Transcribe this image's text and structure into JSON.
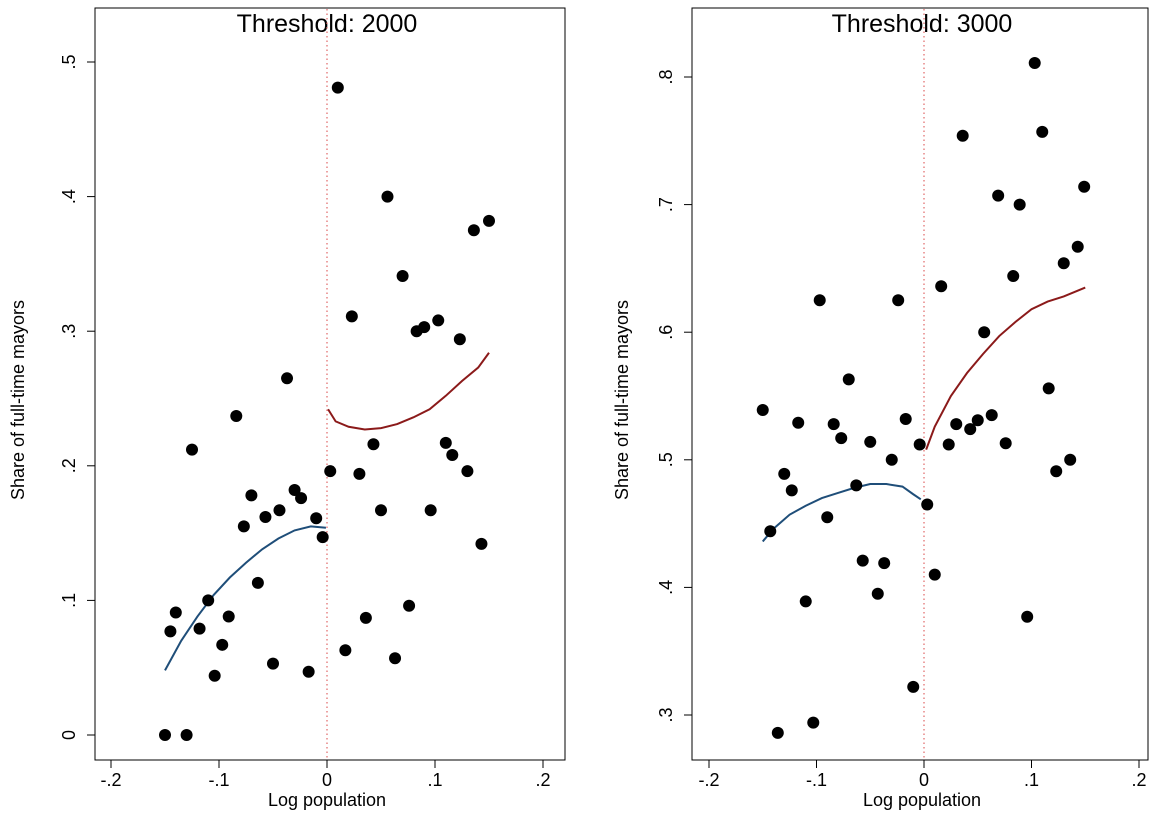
{
  "chart_data": [
    {
      "type": "scatter",
      "title": "Threshold: 2000",
      "xlabel": "Log population",
      "ylabel": "Share of full-time mayors",
      "xlim": [
        -0.2,
        0.2
      ],
      "ylim": [
        0,
        0.5
      ],
      "xticks": [
        -0.2,
        -0.1,
        0,
        0.1,
        0.2
      ],
      "xtick_labels": [
        "-.2",
        "-.1",
        "0",
        ".1",
        ".2"
      ],
      "yticks": [
        0,
        0.1,
        0.2,
        0.3,
        0.4,
        0.5
      ],
      "ytick_labels": [
        "0",
        ".1",
        ".2",
        ".3",
        ".4",
        ".5"
      ],
      "cutoff_line_x": 0,
      "colors": {
        "points": "#000000",
        "fit_left": "#1f4e79",
        "fit_right": "#8b1a1a",
        "cutoff": "#e06666"
      },
      "points": [
        {
          "x": -0.15,
          "y": 0.0
        },
        {
          "x": -0.145,
          "y": 0.077
        },
        {
          "x": -0.14,
          "y": 0.091
        },
        {
          "x": -0.13,
          "y": 0.0
        },
        {
          "x": -0.125,
          "y": 0.212
        },
        {
          "x": -0.118,
          "y": 0.079
        },
        {
          "x": -0.11,
          "y": 0.1
        },
        {
          "x": -0.104,
          "y": 0.044
        },
        {
          "x": -0.097,
          "y": 0.067
        },
        {
          "x": -0.091,
          "y": 0.088
        },
        {
          "x": -0.084,
          "y": 0.237
        },
        {
          "x": -0.077,
          "y": 0.155
        },
        {
          "x": -0.07,
          "y": 0.178
        },
        {
          "x": -0.064,
          "y": 0.113
        },
        {
          "x": -0.057,
          "y": 0.162
        },
        {
          "x": -0.05,
          "y": 0.053
        },
        {
          "x": -0.044,
          "y": 0.167
        },
        {
          "x": -0.037,
          "y": 0.265
        },
        {
          "x": -0.03,
          "y": 0.182
        },
        {
          "x": -0.024,
          "y": 0.176
        },
        {
          "x": -0.017,
          "y": 0.047
        },
        {
          "x": -0.01,
          "y": 0.161
        },
        {
          "x": -0.004,
          "y": 0.147
        },
        {
          "x": 0.003,
          "y": 0.196
        },
        {
          "x": 0.01,
          "y": 0.481
        },
        {
          "x": 0.017,
          "y": 0.063
        },
        {
          "x": 0.023,
          "y": 0.311
        },
        {
          "x": 0.03,
          "y": 0.194
        },
        {
          "x": 0.036,
          "y": 0.087
        },
        {
          "x": 0.043,
          "y": 0.216
        },
        {
          "x": 0.05,
          "y": 0.167
        },
        {
          "x": 0.056,
          "y": 0.4
        },
        {
          "x": 0.063,
          "y": 0.057
        },
        {
          "x": 0.07,
          "y": 0.341
        },
        {
          "x": 0.076,
          "y": 0.096
        },
        {
          "x": 0.083,
          "y": 0.3
        },
        {
          "x": 0.09,
          "y": 0.303
        },
        {
          "x": 0.096,
          "y": 0.167
        },
        {
          "x": 0.103,
          "y": 0.308
        },
        {
          "x": 0.11,
          "y": 0.217
        },
        {
          "x": 0.116,
          "y": 0.208
        },
        {
          "x": 0.123,
          "y": 0.294
        },
        {
          "x": 0.13,
          "y": 0.196
        },
        {
          "x": 0.136,
          "y": 0.375
        },
        {
          "x": 0.143,
          "y": 0.142
        },
        {
          "x": 0.15,
          "y": 0.382
        }
      ],
      "fit_left": [
        {
          "x": -0.15,
          "y": 0.048
        },
        {
          "x": -0.135,
          "y": 0.07
        },
        {
          "x": -0.12,
          "y": 0.088
        },
        {
          "x": -0.105,
          "y": 0.104
        },
        {
          "x": -0.09,
          "y": 0.117
        },
        {
          "x": -0.075,
          "y": 0.128
        },
        {
          "x": -0.06,
          "y": 0.138
        },
        {
          "x": -0.045,
          "y": 0.146
        },
        {
          "x": -0.03,
          "y": 0.152
        },
        {
          "x": -0.015,
          "y": 0.155
        },
        {
          "x": -0.001,
          "y": 0.154
        }
      ],
      "fit_right": [
        {
          "x": 0.001,
          "y": 0.242
        },
        {
          "x": 0.008,
          "y": 0.233
        },
        {
          "x": 0.02,
          "y": 0.229
        },
        {
          "x": 0.035,
          "y": 0.227
        },
        {
          "x": 0.05,
          "y": 0.228
        },
        {
          "x": 0.065,
          "y": 0.231
        },
        {
          "x": 0.08,
          "y": 0.236
        },
        {
          "x": 0.095,
          "y": 0.242
        },
        {
          "x": 0.11,
          "y": 0.252
        },
        {
          "x": 0.125,
          "y": 0.263
        },
        {
          "x": 0.14,
          "y": 0.273
        },
        {
          "x": 0.15,
          "y": 0.284
        }
      ]
    },
    {
      "type": "scatter",
      "title": "Threshold: 3000",
      "xlabel": "Log population",
      "ylabel": "Share of full-time mayors",
      "xlim": [
        -0.2,
        0.2
      ],
      "ylim": [
        0.3,
        0.8
      ],
      "xticks": [
        -0.2,
        -0.1,
        0,
        0.1,
        0.2
      ],
      "xtick_labels": [
        "-.2",
        "-.1",
        "0",
        ".1",
        ".2"
      ],
      "yticks": [
        0.3,
        0.4,
        0.5,
        0.6,
        0.7,
        0.8
      ],
      "ytick_labels": [
        ".3",
        ".4",
        ".5",
        ".6",
        ".7",
        ".8"
      ],
      "cutoff_line_x": 0,
      "colors": {
        "points": "#000000",
        "fit_left": "#1f4e79",
        "fit_right": "#8b1a1a",
        "cutoff": "#e06666"
      },
      "points": [
        {
          "x": -0.15,
          "y": 0.539
        },
        {
          "x": -0.143,
          "y": 0.444
        },
        {
          "x": -0.136,
          "y": 0.286
        },
        {
          "x": -0.13,
          "y": 0.489
        },
        {
          "x": -0.123,
          "y": 0.476
        },
        {
          "x": -0.117,
          "y": 0.529
        },
        {
          "x": -0.11,
          "y": 0.389
        },
        {
          "x": -0.103,
          "y": 0.294
        },
        {
          "x": -0.097,
          "y": 0.625
        },
        {
          "x": -0.09,
          "y": 0.455
        },
        {
          "x": -0.084,
          "y": 0.528
        },
        {
          "x": -0.077,
          "y": 0.517
        },
        {
          "x": -0.07,
          "y": 0.563
        },
        {
          "x": -0.063,
          "y": 0.48
        },
        {
          "x": -0.057,
          "y": 0.421
        },
        {
          "x": -0.05,
          "y": 0.514
        },
        {
          "x": -0.043,
          "y": 0.395
        },
        {
          "x": -0.037,
          "y": 0.419
        },
        {
          "x": -0.03,
          "y": 0.5
        },
        {
          "x": -0.024,
          "y": 0.625
        },
        {
          "x": -0.017,
          "y": 0.532
        },
        {
          "x": -0.01,
          "y": 0.322
        },
        {
          "x": -0.004,
          "y": 0.512
        },
        {
          "x": 0.003,
          "y": 0.465
        },
        {
          "x": 0.01,
          "y": 0.41
        },
        {
          "x": 0.016,
          "y": 0.636
        },
        {
          "x": 0.023,
          "y": 0.512
        },
        {
          "x": 0.03,
          "y": 0.528
        },
        {
          "x": 0.036,
          "y": 0.754
        },
        {
          "x": 0.043,
          "y": 0.524
        },
        {
          "x": 0.05,
          "y": 0.531
        },
        {
          "x": 0.056,
          "y": 0.6
        },
        {
          "x": 0.063,
          "y": 0.535
        },
        {
          "x": 0.069,
          "y": 0.707
        },
        {
          "x": 0.076,
          "y": 0.513
        },
        {
          "x": 0.083,
          "y": 0.644
        },
        {
          "x": 0.089,
          "y": 0.7
        },
        {
          "x": 0.096,
          "y": 0.377
        },
        {
          "x": 0.103,
          "y": 0.811
        },
        {
          "x": 0.11,
          "y": 0.757
        },
        {
          "x": 0.116,
          "y": 0.556
        },
        {
          "x": 0.123,
          "y": 0.491
        },
        {
          "x": 0.13,
          "y": 0.654
        },
        {
          "x": 0.136,
          "y": 0.5
        },
        {
          "x": 0.143,
          "y": 0.667
        },
        {
          "x": 0.149,
          "y": 0.714
        }
      ],
      "fit_left": [
        {
          "x": -0.15,
          "y": 0.436
        },
        {
          "x": -0.14,
          "y": 0.446
        },
        {
          "x": -0.125,
          "y": 0.457
        },
        {
          "x": -0.11,
          "y": 0.464
        },
        {
          "x": -0.095,
          "y": 0.47
        },
        {
          "x": -0.08,
          "y": 0.474
        },
        {
          "x": -0.065,
          "y": 0.478
        },
        {
          "x": -0.05,
          "y": 0.481
        },
        {
          "x": -0.035,
          "y": 0.481
        },
        {
          "x": -0.02,
          "y": 0.479
        },
        {
          "x": -0.01,
          "y": 0.473
        },
        {
          "x": -0.003,
          "y": 0.469
        }
      ],
      "fit_right": [
        {
          "x": 0.002,
          "y": 0.508
        },
        {
          "x": 0.01,
          "y": 0.526
        },
        {
          "x": 0.025,
          "y": 0.55
        },
        {
          "x": 0.04,
          "y": 0.568
        },
        {
          "x": 0.055,
          "y": 0.583
        },
        {
          "x": 0.07,
          "y": 0.597
        },
        {
          "x": 0.085,
          "y": 0.608
        },
        {
          "x": 0.1,
          "y": 0.618
        },
        {
          "x": 0.115,
          "y": 0.624
        },
        {
          "x": 0.13,
          "y": 0.628
        },
        {
          "x": 0.15,
          "y": 0.635
        }
      ]
    }
  ]
}
